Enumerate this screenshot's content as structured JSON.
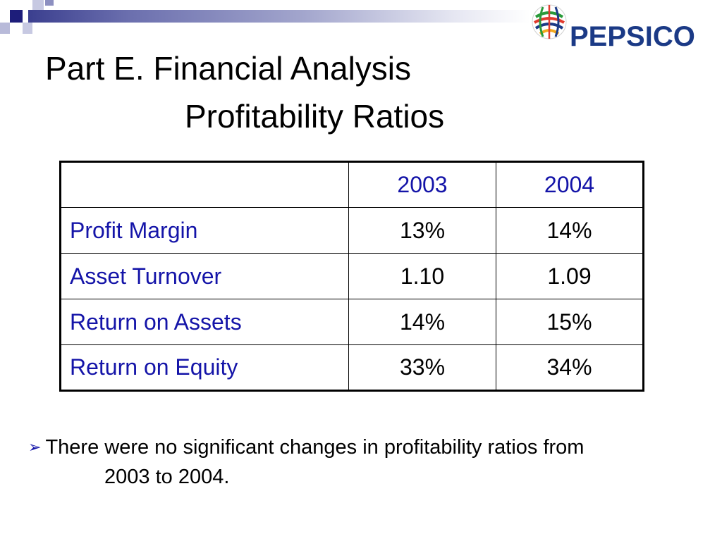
{
  "slide": {
    "title_line_1": "Part E. Financial Analysis",
    "title_line_2": "Profitability Ratios",
    "logo": {
      "text": "PEPSICO",
      "icon": "pepsico-globe-icon",
      "brand_color": "#1b3a86"
    },
    "accent_color": "#1414a8"
  },
  "table": {
    "columns": [
      "",
      "2003",
      "2004"
    ],
    "rows": [
      {
        "label": "Profit Margin",
        "values": [
          "13%",
          "14%"
        ]
      },
      {
        "label": "Asset Turnover",
        "values": [
          "1.10",
          "1.09"
        ]
      },
      {
        "label": "Return on Assets",
        "values": [
          "14%",
          "15%"
        ]
      },
      {
        "label": "Return on Equity",
        "values": [
          "33%",
          "34%"
        ]
      }
    ]
  },
  "bullet": {
    "icon": "arrow-bullet-icon",
    "symbol": "➢",
    "line_1": "There were no significant changes in profitability ratios from",
    "line_2": "2003 to 2004."
  }
}
